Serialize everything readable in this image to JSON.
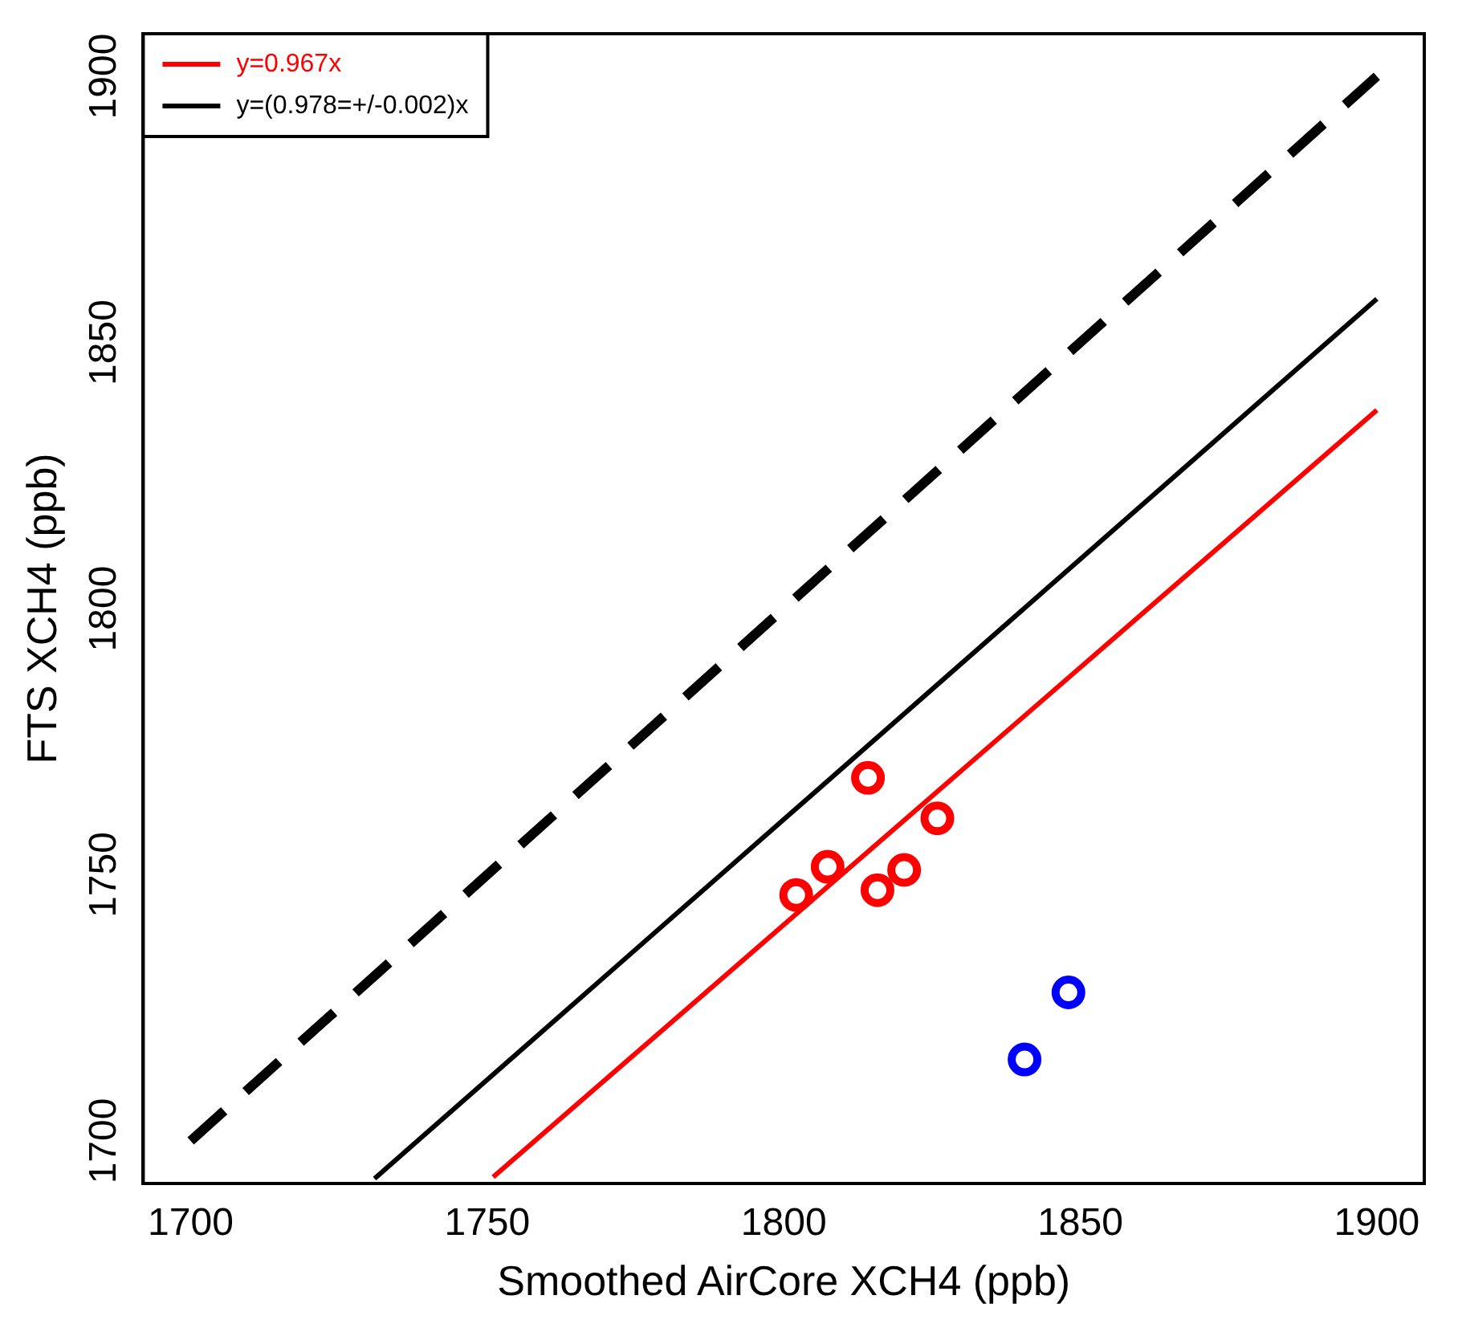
{
  "chart_data": {
    "type": "scatter",
    "xlabel": "Smoothed AirCore XCH4 (ppb)",
    "ylabel": "FTS XCH4 (ppb)",
    "xlim": [
      1692,
      1908
    ],
    "ylim": [
      1692,
      1908
    ],
    "xticks": [
      1700,
      1750,
      1800,
      1850,
      1900
    ],
    "yticks": [
      1700,
      1750,
      1800,
      1850,
      1900
    ],
    "grid": false,
    "legend": "top left",
    "marker": "circle",
    "series": [
      {
        "type": "line",
        "name": "y=0.967x",
        "color": "#ff0000",
        "line_style": "solid",
        "marker": "none",
        "x": [
          1751,
          1900
        ],
        "values": [
          1693.2,
          1837.3
        ]
      },
      {
        "type": "line",
        "name": "y=(0.978=+/-0.002)x",
        "color": "#000000",
        "line_style": "solid",
        "marker": "none",
        "x": [
          1731,
          1900
        ],
        "values": [
          1692.9,
          1858.2
        ]
      },
      {
        "type": "line",
        "color": "#000000",
        "line_style": "dashed",
        "marker": "none",
        "x": [
          1700,
          1900
        ],
        "values": [
          1700,
          1900
        ]
      },
      {
        "color": "#ff0000",
        "x": [
          1802.1,
          1807.4,
          1814.2,
          1815.8,
          1820.3,
          1825.9
        ],
        "values": [
          1746.2,
          1751.5,
          1768.2,
          1747.1,
          1750.9,
          1760.6
        ]
      },
      {
        "color": "#0000ff",
        "x": [
          1840.6,
          1848.0
        ],
        "values": [
          1715.3,
          1727.9
        ]
      }
    ]
  }
}
